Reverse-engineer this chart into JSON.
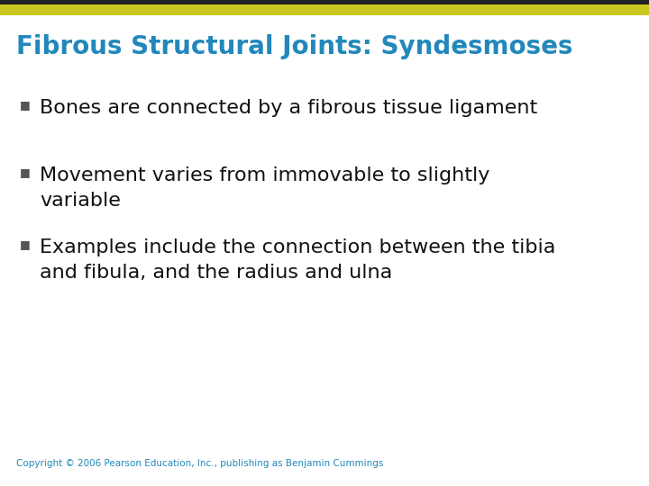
{
  "title": "Fibrous Structural Joints: Syndesmoses",
  "title_color": "#2288bb",
  "title_fontsize": 20,
  "background_color": "#ffffff",
  "top_bar_dark_color": "#222222",
  "top_bar_gold_color": "#c8c820",
  "bullet_points": [
    "Bones are connected by a fibrous tissue ligament",
    "Movement varies from immovable to slightly\nvariable",
    "Examples include the connection between the tibia\nand fibula, and the radius and ulna"
  ],
  "bullet_color": "#111111",
  "bullet_fontsize": 16,
  "bullet_marker": "■",
  "bullet_marker_color": "#555555",
  "copyright": "Copyright © 2006 Pearson Education, Inc., publishing as Benjamin Cummings",
  "copyright_color": "#2288bb",
  "copyright_fontsize": 7.5,
  "fig_width": 7.2,
  "fig_height": 5.4,
  "dpi": 100
}
